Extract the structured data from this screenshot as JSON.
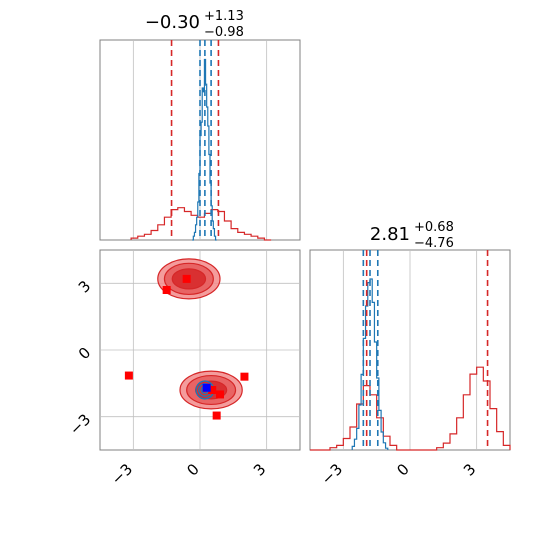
{
  "colors": {
    "blue": "#1f77b4",
    "red": "#d62728",
    "red_light": "#f28b8b",
    "red_marker": "#ff0000",
    "blue_marker": "#0000ff",
    "grid": "#c0c0c0",
    "axes": "#808080"
  },
  "chart_data": {
    "type": "corner",
    "parameters": [
      {
        "title": {
          "main": "−0.30",
          "sup": "+1.13",
          "sub": "−0.98"
        },
        "range": [
          -4.5,
          4.5
        ],
        "ticks": [
          -3,
          0,
          3
        ],
        "tick_labels": [
          "−3",
          "0",
          "3"
        ],
        "blue_quantiles": [
          0.0,
          0.22,
          0.5
        ],
        "red_quantiles": [
          -1.28,
          0.83
        ],
        "blue_hist": {
          "bins": [
            -0.35,
            -0.3,
            -0.25,
            -0.2,
            -0.15,
            -0.1,
            -0.05,
            0.0,
            0.05,
            0.1,
            0.15,
            0.2,
            0.25,
            0.3,
            0.35,
            0.4,
            0.45,
            0.5,
            0.55,
            0.6,
            0.65,
            0.7,
            0.75
          ],
          "values": [
            0.0,
            0.02,
            0.04,
            0.08,
            0.12,
            0.2,
            0.35,
            0.55,
            0.62,
            0.8,
            0.78,
            0.95,
            0.82,
            0.7,
            0.6,
            0.45,
            0.3,
            0.18,
            0.1,
            0.06,
            0.02,
            0.0
          ]
        },
        "red_hist": {
          "bins": [
            -3.1,
            -2.8,
            -2.5,
            -2.2,
            -1.9,
            -1.6,
            -1.3,
            -1.0,
            -0.7,
            -0.4,
            -0.1,
            0.2,
            0.5,
            0.8,
            1.1,
            1.4,
            1.7,
            2.0,
            2.3,
            2.6,
            2.9,
            3.2
          ],
          "values": [
            0.01,
            0.02,
            0.03,
            0.05,
            0.08,
            0.12,
            0.16,
            0.17,
            0.15,
            0.13,
            0.12,
            0.14,
            0.16,
            0.15,
            0.1,
            0.06,
            0.04,
            0.03,
            0.02,
            0.01,
            0.0
          ]
        }
      },
      {
        "title": {
          "main": "2.81",
          "sup": "+0.68",
          "sub": "−4.76"
        },
        "range": [
          -4.5,
          4.5
        ],
        "ticks": [
          -3,
          0,
          3
        ],
        "tick_labels": [
          "−3",
          "0",
          "3"
        ],
        "blue_quantiles": [
          -2.1,
          -1.8,
          -1.45
        ],
        "red_quantiles": [
          -1.95,
          3.49
        ],
        "blue_hist": {
          "bins": [
            -2.6,
            -2.5,
            -2.4,
            -2.3,
            -2.2,
            -2.1,
            -2.0,
            -1.9,
            -1.8,
            -1.7,
            -1.6,
            -1.5,
            -1.4,
            -1.3,
            -1.2,
            -1.1,
            -1.0
          ],
          "values": [
            0.02,
            0.06,
            0.12,
            0.25,
            0.42,
            0.62,
            0.8,
            0.93,
            0.95,
            0.82,
            0.6,
            0.4,
            0.22,
            0.1,
            0.04,
            0.01
          ]
        },
        "red_hist": {
          "bins": [
            -4.5,
            -4.2,
            -3.9,
            -3.6,
            -3.3,
            -3.0,
            -2.7,
            -2.4,
            -2.1,
            -1.8,
            -1.5,
            -1.2,
            -0.9,
            -0.6,
            -0.3,
            0.0,
            0.3,
            0.6,
            0.9,
            1.2,
            1.5,
            1.8,
            2.1,
            2.4,
            2.7,
            3.0,
            3.3,
            3.6,
            3.9,
            4.2,
            4.5
          ],
          "values": [
            0.0,
            0.0,
            0.0,
            0.01,
            0.02,
            0.05,
            0.1,
            0.2,
            0.28,
            0.24,
            0.14,
            0.06,
            0.02,
            0.0,
            0.0,
            0.0,
            0.0,
            0.0,
            0.0,
            0.01,
            0.03,
            0.07,
            0.14,
            0.24,
            0.33,
            0.36,
            0.3,
            0.18,
            0.08,
            0.02
          ]
        }
      }
    ],
    "joint": {
      "red_clusters": [
        {
          "center": [
            -0.5,
            3.2
          ],
          "radii": [
            [
              1.4,
              0.9
            ],
            [
              1.1,
              0.7
            ],
            [
              0.75,
              0.45
            ]
          ]
        },
        {
          "center": [
            0.5,
            -1.8
          ],
          "radii": [
            [
              1.4,
              0.85
            ],
            [
              1.1,
              0.65
            ],
            [
              0.7,
              0.4
            ]
          ]
        }
      ],
      "blue_contours": {
        "center": [
          0.22,
          -1.8
        ],
        "radii": [
          [
            0.4,
            0.4
          ],
          [
            0.28,
            0.28
          ],
          [
            0.16,
            0.16
          ]
        ]
      },
      "red_markers": [
        [
          -0.6,
          3.2
        ],
        [
          -1.5,
          2.7
        ],
        [
          -3.2,
          -1.15
        ],
        [
          0.75,
          -2.95
        ],
        [
          2.0,
          -1.2
        ],
        [
          0.55,
          -1.8
        ],
        [
          0.9,
          -2.0
        ]
      ],
      "blue_markers": [
        [
          0.3,
          -1.7
        ]
      ]
    }
  }
}
